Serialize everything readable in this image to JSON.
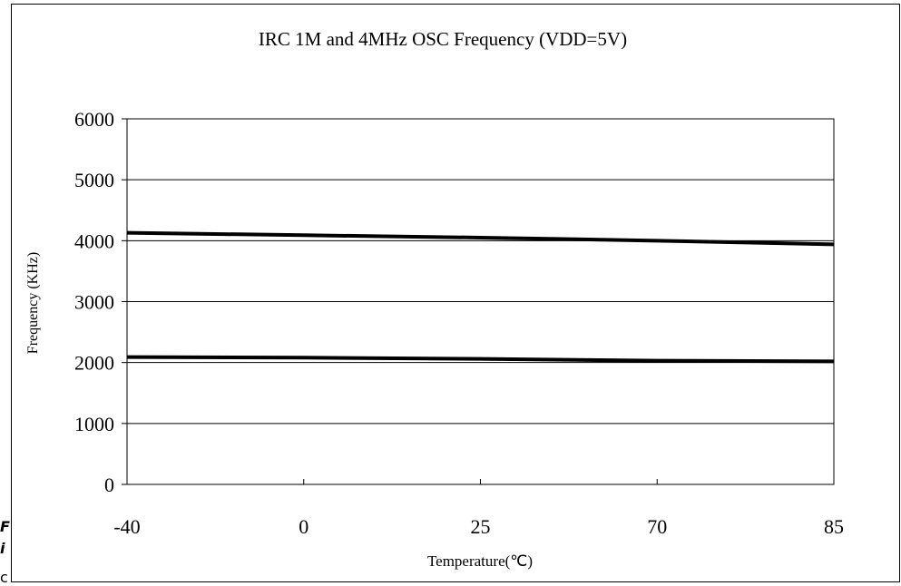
{
  "chart_data": {
    "type": "line",
    "title": "IRC 1M and 4MHz OSC Frequency (VDD=5V)",
    "xlabel": "Temperature(℃)",
    "ylabel": "Frequency (KHz)",
    "categories": [
      "-40",
      "0",
      "25",
      "70",
      "85"
    ],
    "ylim": [
      0,
      6000
    ],
    "yticks": [
      "0",
      "1000",
      "2000",
      "3000",
      "4000",
      "5000",
      "6000"
    ],
    "grid": "horizontal",
    "series": [
      {
        "values": [
          4130,
          4090,
          4050,
          4000,
          3940
        ]
      },
      {
        "values": [
          2090,
          2080,
          2060,
          2030,
          2020
        ]
      }
    ],
    "line_color": "#000000"
  },
  "left_cut_text": [
    "F",
    "i",
    "c"
  ]
}
